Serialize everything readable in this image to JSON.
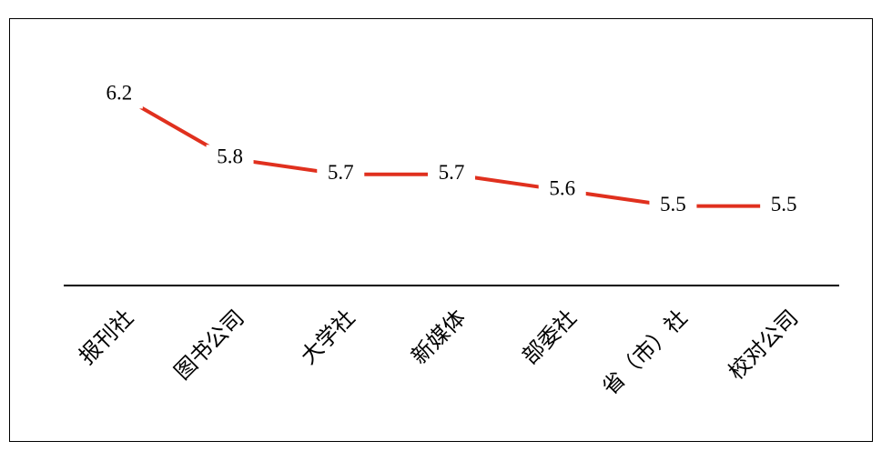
{
  "chart_data": {
    "type": "line",
    "categories": [
      "报刊社",
      "图书公司",
      "大学社",
      "新媒体",
      "部委社",
      "省（市）社",
      "校对公司"
    ],
    "values": [
      6.2,
      5.8,
      5.7,
      5.7,
      5.6,
      5.5,
      5.5
    ],
    "color": "#e0301e",
    "ylim": [
      5,
      6.5
    ]
  }
}
